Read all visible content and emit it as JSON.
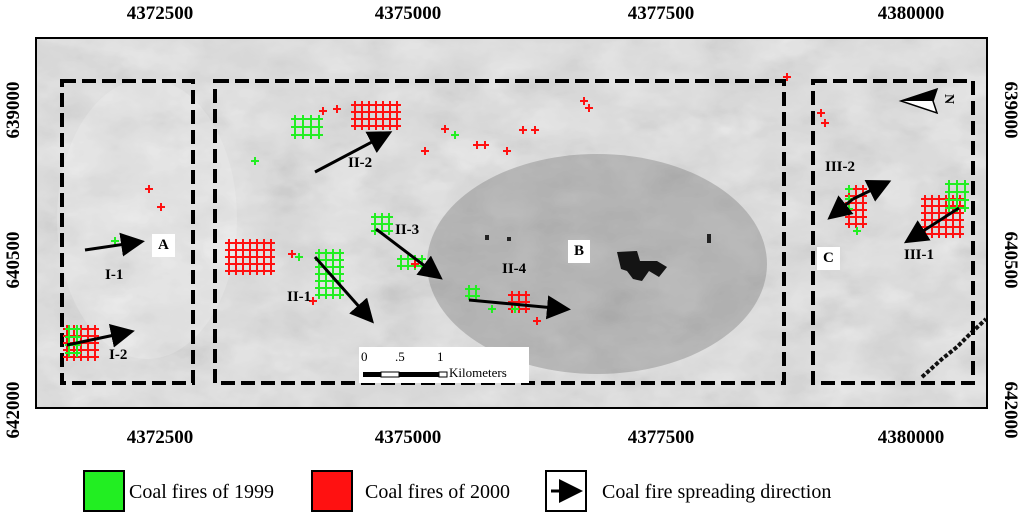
{
  "axes": {
    "easting_ticks": [
      "4372500",
      "4375000",
      "4377500",
      "4380000"
    ],
    "northing_ticks_left": [
      "639000",
      "640500",
      "642000"
    ],
    "northing_ticks_right": [
      "639000",
      "640500",
      "642000"
    ]
  },
  "zones": [
    {
      "id": "A",
      "label": "A"
    },
    {
      "id": "B",
      "label": "B"
    },
    {
      "id": "C",
      "label": "C"
    }
  ],
  "arrows": [
    {
      "id": "I-1",
      "label": "I-1"
    },
    {
      "id": "I-2",
      "label": "I-2"
    },
    {
      "id": "II-1",
      "label": "II-1"
    },
    {
      "id": "II-2",
      "label": "II-2"
    },
    {
      "id": "II-3",
      "label": "II-3"
    },
    {
      "id": "II-4",
      "label": "II-4"
    },
    {
      "id": "III-1",
      "label": "III-1"
    },
    {
      "id": "III-2",
      "label": "III-2"
    }
  ],
  "scale_bar": {
    "ticks": [
      "0",
      ".5",
      "1"
    ],
    "unit": "Kilometers"
  },
  "north_arrow": {
    "letter": "N"
  },
  "legend": {
    "items": [
      {
        "label": "Coal fires of 1999",
        "color": "#22ee22"
      },
      {
        "label": "Coal fires of 2000",
        "color": "#ff1111"
      },
      {
        "label": "Coal fire spreading direction",
        "color": "#000000"
      }
    ]
  }
}
